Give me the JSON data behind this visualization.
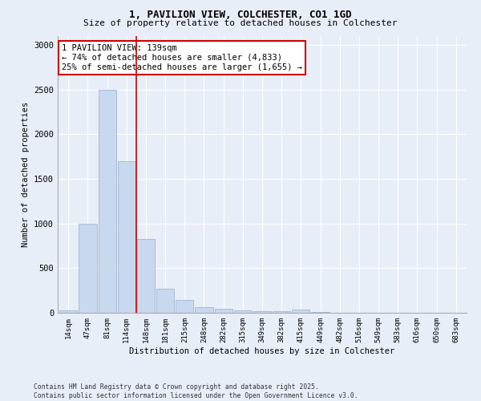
{
  "title_line1": "1, PAVILION VIEW, COLCHESTER, CO1 1GD",
  "title_line2": "Size of property relative to detached houses in Colchester",
  "xlabel": "Distribution of detached houses by size in Colchester",
  "ylabel": "Number of detached properties",
  "categories": [
    "14sqm",
    "47sqm",
    "81sqm",
    "114sqm",
    "148sqm",
    "181sqm",
    "215sqm",
    "248sqm",
    "282sqm",
    "315sqm",
    "349sqm",
    "382sqm",
    "415sqm",
    "449sqm",
    "482sqm",
    "516sqm",
    "549sqm",
    "583sqm",
    "616sqm",
    "650sqm",
    "683sqm"
  ],
  "values": [
    30,
    1000,
    2500,
    1700,
    830,
    270,
    140,
    60,
    45,
    28,
    22,
    18,
    38,
    5,
    0,
    0,
    0,
    0,
    0,
    0,
    0
  ],
  "bar_color": "#c8d8ee",
  "bar_edge_color": "#99aacc",
  "vline_x_index": 3.5,
  "vline_color": "#cc0000",
  "annotation_text": "1 PAVILION VIEW: 139sqm\n← 74% of detached houses are smaller (4,833)\n25% of semi-detached houses are larger (1,655) →",
  "annotation_box_color": "#ffffff",
  "annotation_box_edge": "#cc0000",
  "ylim": [
    0,
    3100
  ],
  "yticks": [
    0,
    500,
    1000,
    1500,
    2000,
    2500,
    3000
  ],
  "footnote": "Contains HM Land Registry data © Crown copyright and database right 2025.\nContains public sector information licensed under the Open Government Licence v3.0.",
  "bg_color": "#e8eef8",
  "plot_bg_color": "#e8eef8",
  "grid_color": "#ffffff",
  "title_fontsize": 9,
  "subtitle_fontsize": 8
}
